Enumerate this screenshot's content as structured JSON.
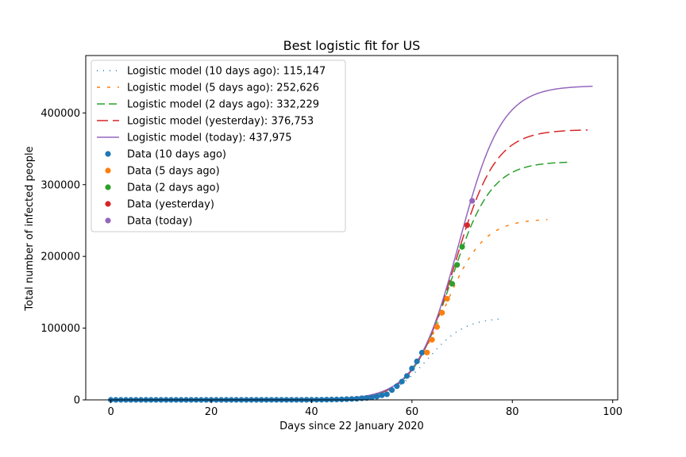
{
  "chart_data": {
    "type": "line",
    "title": "Best logistic fit for US",
    "xlabel": "Days since 22 January 2020",
    "ylabel": "Total number of infected people",
    "xlim": [
      -5,
      101
    ],
    "ylim": [
      0,
      480000
    ],
    "xticks": [
      0,
      20,
      40,
      60,
      80,
      100
    ],
    "xtick_labels": [
      "0",
      "20",
      "40",
      "60",
      "80",
      "100"
    ],
    "yticks": [
      0,
      100000,
      200000,
      300000,
      400000
    ],
    "ytick_labels": [
      "0",
      "100000",
      "200000",
      "300000",
      "400000"
    ],
    "grid": false,
    "legend_position": "top-left",
    "series": [
      {
        "name": "Logistic model (10 days ago): 115,147",
        "kind": "line",
        "style": "dotted",
        "color": "#1f77b4",
        "model": {
          "capacity": 115147,
          "midpoint": 63.2,
          "rate": 0.27
        },
        "x_range": [
          0,
          78
        ]
      },
      {
        "name": "Logistic model (5 days ago): 252,626",
        "kind": "line",
        "style": "dashed-short",
        "color": "#ff7f0e",
        "model": {
          "capacity": 252626,
          "midpoint": 66.4,
          "rate": 0.255
        },
        "x_range": [
          0,
          87
        ]
      },
      {
        "name": "Logistic model (2 days ago): 332,229",
        "kind": "line",
        "style": "dashed",
        "color": "#2ca02c",
        "model": {
          "capacity": 332229,
          "midpoint": 67.8,
          "rate": 0.25
        },
        "x_range": [
          0,
          91
        ]
      },
      {
        "name": "Logistic model (yesterday): 376,753",
        "kind": "line",
        "style": "dashed-long",
        "color": "#d62728",
        "model": {
          "capacity": 376753,
          "midpoint": 68.5,
          "rate": 0.245
        },
        "x_range": [
          0,
          95
        ]
      },
      {
        "name": "Logistic model (today): 437,975",
        "kind": "line",
        "style": "solid",
        "color": "#9467bd",
        "model": {
          "capacity": 437975,
          "midpoint": 69.4,
          "rate": 0.235
        },
        "x_range": [
          0,
          96
        ]
      },
      {
        "name": "Data (10 days ago)",
        "kind": "scatter",
        "color": "#1f77b4",
        "x": [
          0,
          1,
          2,
          3,
          4,
          5,
          6,
          7,
          8,
          9,
          10,
          11,
          12,
          13,
          14,
          15,
          16,
          17,
          18,
          19,
          20,
          21,
          22,
          23,
          24,
          25,
          26,
          27,
          28,
          29,
          30,
          31,
          32,
          33,
          34,
          35,
          36,
          37,
          38,
          39,
          40,
          41,
          42,
          43,
          44,
          45,
          46,
          47,
          48,
          49,
          50,
          51,
          52,
          53,
          54,
          55,
          56,
          57,
          58,
          59,
          60,
          61,
          62
        ],
        "y": [
          1,
          1,
          2,
          2,
          5,
          5,
          5,
          5,
          5,
          7,
          8,
          8,
          11,
          11,
          11,
          11,
          12,
          12,
          13,
          13,
          13,
          14,
          14,
          15,
          15,
          15,
          15,
          15,
          35,
          35,
          35,
          53,
          57,
          60,
          60,
          62,
          64,
          69,
          89,
          105,
          125,
          159,
          227,
          331,
          444,
          564,
          728,
          1000,
          1300,
          1600,
          2200,
          2700,
          3500,
          4600,
          6400,
          7800,
          13700,
          19100,
          25500,
          33300,
          43800,
          53700,
          65800
        ]
      },
      {
        "name": "Data (5 days ago)",
        "kind": "scatter",
        "color": "#ff7f0e",
        "x": [
          63,
          64,
          65,
          66,
          67
        ],
        "y": [
          66000,
          83800,
          101700,
          121500,
          140900
        ]
      },
      {
        "name": "Data (2 days ago)",
        "kind": "scatter",
        "color": "#2ca02c",
        "x": [
          68,
          69,
          70
        ],
        "y": [
          161800,
          188200,
          213400
        ]
      },
      {
        "name": "Data (yesterday)",
        "kind": "scatter",
        "color": "#d62728",
        "x": [
          71
        ],
        "y": [
          243500
        ]
      },
      {
        "name": "Data (today)",
        "kind": "scatter",
        "color": "#9467bd",
        "x": [
          72
        ],
        "y": [
          277500
        ]
      }
    ]
  }
}
